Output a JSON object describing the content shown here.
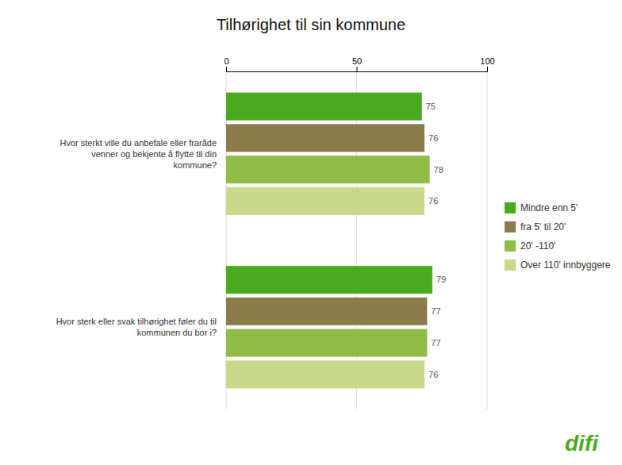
{
  "chart_data": {
    "type": "bar",
    "orientation": "horizontal",
    "title": "Tilhørighet til sin kommune",
    "categories": [
      "Hvor sterkt ville du anbefale eller fraråde\nvenner og bekjente å flytte til din\nkommune?",
      "Hvor sterk eller svak tilhørighet føler du til\nkommunen du bor i?"
    ],
    "series": [
      {
        "name": "Mindre enn 5'",
        "color": "#4aaa1e",
        "values": [
          75,
          79
        ]
      },
      {
        "name": "fra 5' til 20'",
        "color": "#8b7a4a",
        "values": [
          76,
          77
        ]
      },
      {
        "name": "20' -110'",
        "color": "#8fbc45",
        "values": [
          78,
          77
        ]
      },
      {
        "name": "Over 110' innbyggere",
        "color": "#c8d98a",
        "values": [
          76,
          76
        ]
      }
    ],
    "xlim": [
      0,
      100
    ],
    "xticks": [
      0,
      50,
      100
    ],
    "grid": true,
    "legend": "right",
    "data_labels": true,
    "annotations": [
      {
        "text": "difi",
        "color": "#4aaa1e"
      }
    ]
  }
}
